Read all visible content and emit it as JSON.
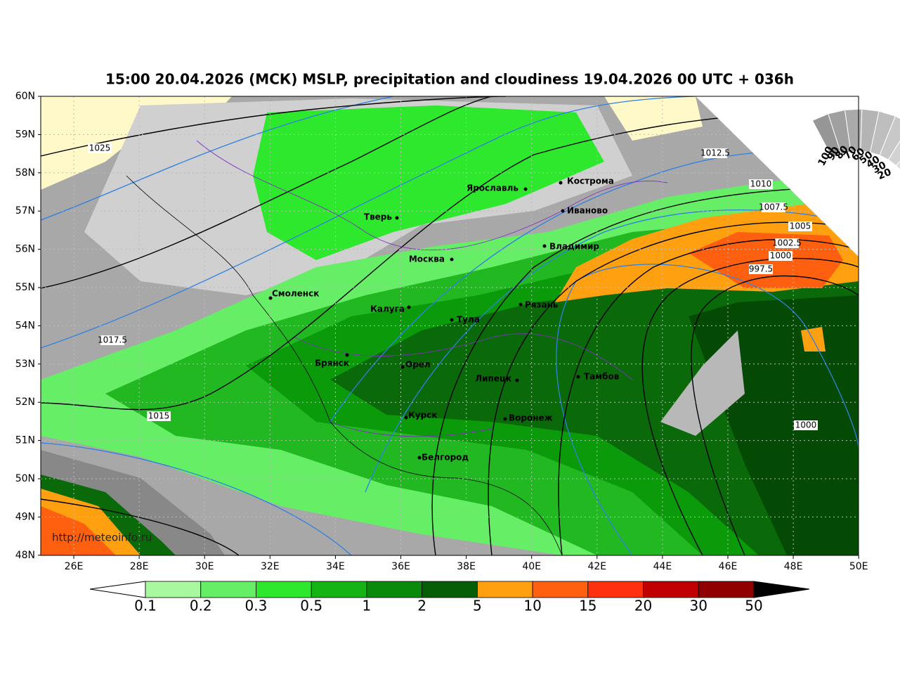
{
  "title": "15:00 20.04.2026 (МСК) MSLP, precipitation and cloudiness 19.04.2026 00 UTC + 036h",
  "lat_labels": [
    "60N",
    "59N",
    "58N",
    "57N",
    "56N",
    "55N",
    "54N",
    "53N",
    "52N",
    "51N",
    "50N",
    "49N",
    "48N"
  ],
  "lon_labels": [
    "26E",
    "28E",
    "30E",
    "32E",
    "34E",
    "36E",
    "38E",
    "40E",
    "42E",
    "44E",
    "46E",
    "48E",
    "50E"
  ],
  "cities": [
    "Ярославль",
    "Кострома",
    "Иваново",
    "Тверь",
    "Владимир",
    "Москва",
    "Смоленск",
    "Калуга",
    "Рязань",
    "Тула",
    "Брянск",
    "Орел",
    "Липецк",
    "Тамбов",
    "Курск",
    "Воронеж",
    "Белгород"
  ],
  "isobar_labels": [
    "1025",
    "1017.5",
    "1015",
    "1012.5",
    "1010",
    "1007.5",
    "1005",
    "1002.5",
    "1000",
    "997.5",
    "1000"
  ],
  "cloud_scale_labels": [
    "100",
    "90",
    "80",
    "70",
    "60",
    "50",
    "40",
    "30",
    "20"
  ],
  "source_url": "http://meteoinfo.ru",
  "colorbar": {
    "labels": [
      "0.1",
      "0.2",
      "0.3",
      "0.5",
      "1",
      "2",
      "5",
      "10",
      "15",
      "20",
      "30",
      "50"
    ],
    "colors": [
      "#a8f8a0",
      "#66ee66",
      "#2ee82e",
      "#14b414",
      "#0a8a0a",
      "#065e06",
      "#ffa010",
      "#ff6010",
      "#ff3010",
      "#c00000",
      "#900000"
    ]
  }
}
